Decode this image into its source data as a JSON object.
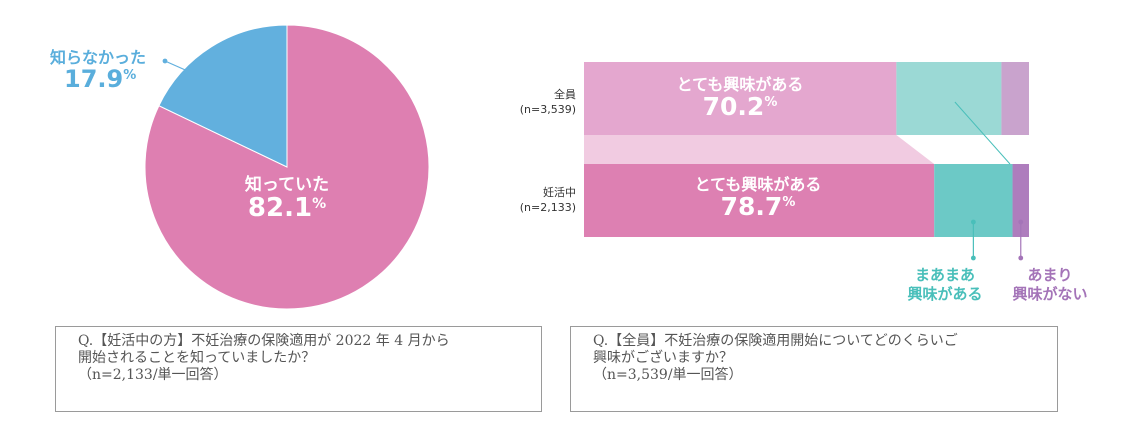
{
  "colors": {
    "pie_knew": "#de7fb1",
    "pie_didnt": "#62b0de",
    "bar_very_all": "#e4a7cf",
    "bar_very_preg": "#dd80b2",
    "bar_some": "#6cc9c6",
    "bar_some_light": "#9bd9d5",
    "bar_not_all": "#c9a3cd",
    "bar_not_preg": "#ae7dbd",
    "connector": "#f1cbe1",
    "legend_some": "#49bfba",
    "legend_not": "#a474b8"
  },
  "chart_data": [
    {
      "type": "pie",
      "slices": [
        {
          "label": "知っていた",
          "value": 82.1
        },
        {
          "label": "知らなかった",
          "value": 17.9
        }
      ],
      "value_suffix": "%"
    },
    {
      "type": "bar",
      "orientation": "horizontal",
      "stacked": true,
      "categories": [
        {
          "label": "全員",
          "n": "(n=3,539)"
        },
        {
          "label": "妊活中",
          "n": "(n=2,133)"
        }
      ],
      "series": [
        {
          "name": "とても興味がある",
          "values": [
            70.2,
            78.7
          ]
        },
        {
          "name": "まあまあ興味がある",
          "values": [
            23.6,
            17.6
          ]
        },
        {
          "name": "あまり興味がない",
          "values": [
            6.2,
            3.7
          ]
        }
      ],
      "legend": [
        {
          "line1": "まあまあ",
          "line2": "興味がある"
        },
        {
          "line1": "あまり",
          "line2": "興味がない"
        }
      ],
      "pct_sign": "%"
    }
  ],
  "questions": {
    "pie": {
      "line1": "Q.【妊活中の方】不妊治療の保険適用が 2022 年 4 月から",
      "line2": "開始されることを知っていましたか？",
      "line3": "（n=2,133/単一回答）"
    },
    "bar": {
      "line1": "Q.【全員】不妊治療の保険適用開始についてどのくらいご",
      "line2": "興味がございますか？",
      "line3": "（n=3,539/単一回答）"
    }
  }
}
